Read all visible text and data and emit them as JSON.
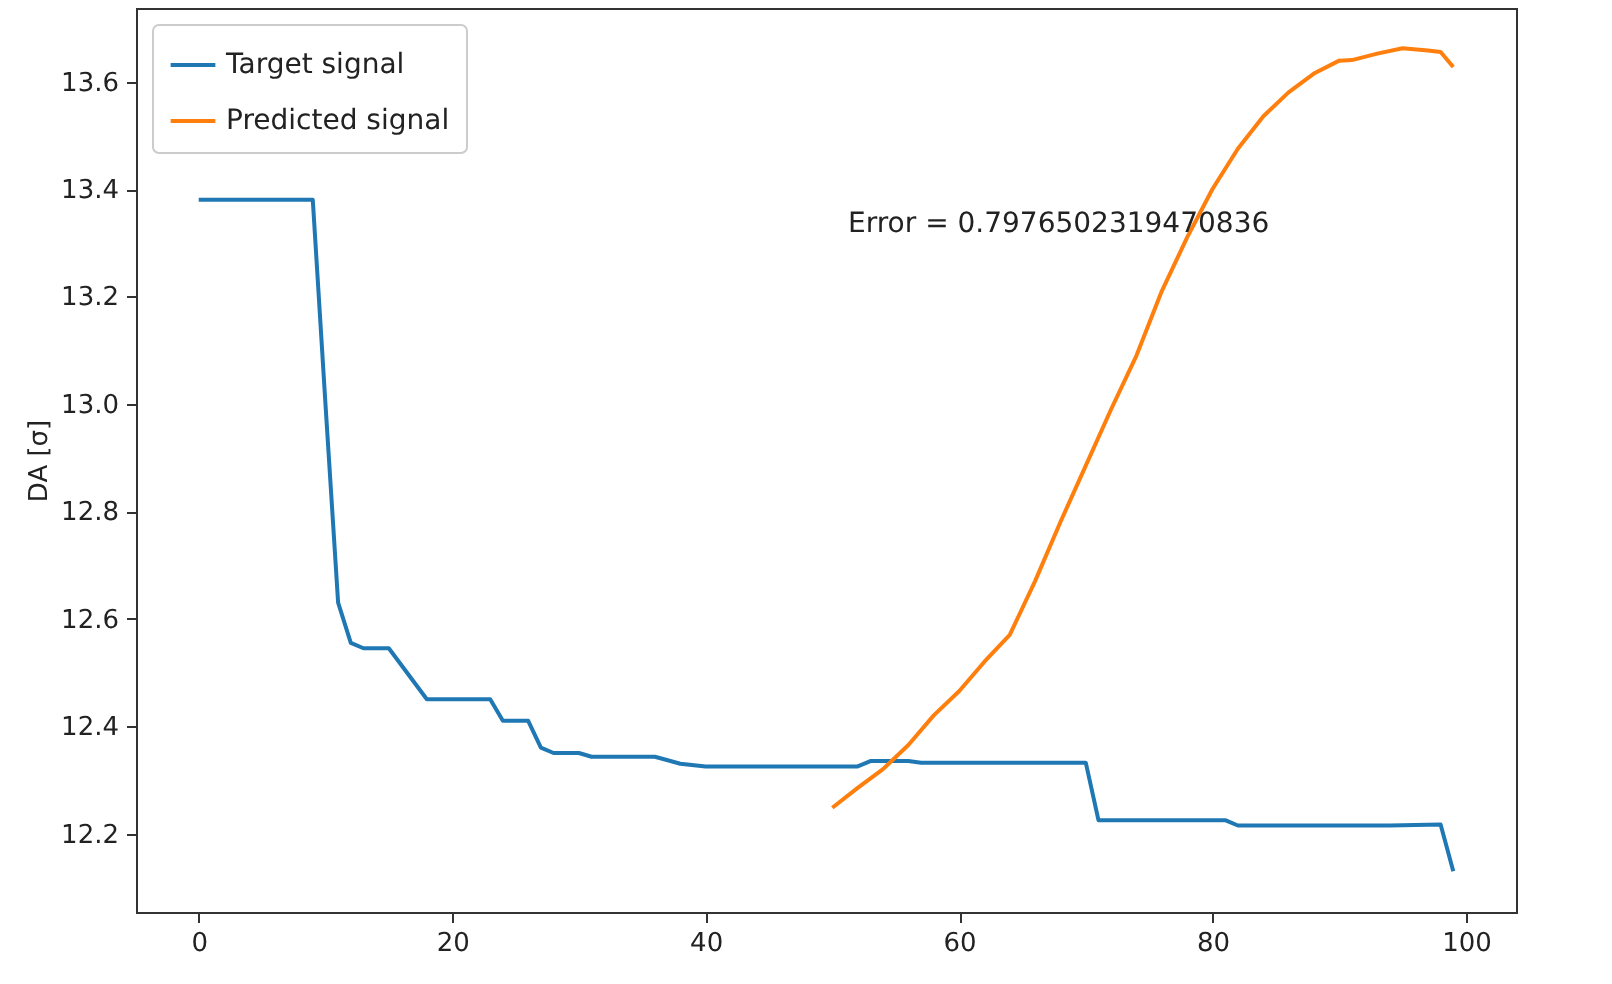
{
  "chart_data": {
    "type": "line",
    "ylabel": "DA [σ]",
    "xlim": [
      -4.95,
      103.95
    ],
    "xticks": [
      0,
      20,
      40,
      60,
      80,
      100
    ],
    "ylim": [
      12.054,
      13.737
    ],
    "yticks": [
      12.2,
      12.4,
      12.6,
      12.8,
      {
        "value": 13.0,
        "label": "13.0"
      },
      13.2,
      13.4,
      13.6
    ],
    "grid": false,
    "legend": "top left",
    "line_style": "solid",
    "annotations": [
      "Error = 0.7976502319470836"
    ],
    "series": [
      {
        "name": "Target signal",
        "color": "#1f77b4",
        "x": [
          0,
          9,
          10,
          11,
          12,
          13,
          15,
          18,
          23,
          24,
          26,
          27,
          28,
          30,
          31,
          36,
          38,
          40,
          52,
          53,
          56,
          57,
          70,
          71,
          81,
          82,
          94,
          98,
          99
        ],
        "values": [
          13.38,
          13.38,
          13.0,
          12.63,
          12.555,
          12.545,
          12.545,
          12.45,
          12.45,
          12.41,
          12.41,
          12.36,
          12.35,
          12.35,
          12.343,
          12.343,
          12.33,
          12.325,
          12.325,
          12.335,
          12.335,
          12.332,
          12.332,
          12.225,
          12.225,
          12.215,
          12.215,
          12.217,
          12.13
        ]
      },
      {
        "name": "Predicted signal",
        "color": "#ff7f0e",
        "x": [
          50,
          52,
          54,
          56,
          58,
          60,
          62,
          64,
          66,
          68,
          70,
          72,
          74,
          76,
          78,
          80,
          82,
          84,
          86,
          88,
          90,
          91,
          93,
          95,
          97,
          98,
          99
        ],
        "values": [
          12.248,
          12.285,
          12.32,
          12.365,
          12.42,
          12.465,
          12.52,
          12.57,
          12.67,
          12.78,
          12.885,
          12.99,
          13.09,
          13.21,
          13.31,
          13.4,
          13.475,
          13.535,
          13.58,
          13.615,
          13.639,
          13.64,
          13.652,
          13.662,
          13.658,
          13.655,
          13.627
        ]
      }
    ]
  }
}
